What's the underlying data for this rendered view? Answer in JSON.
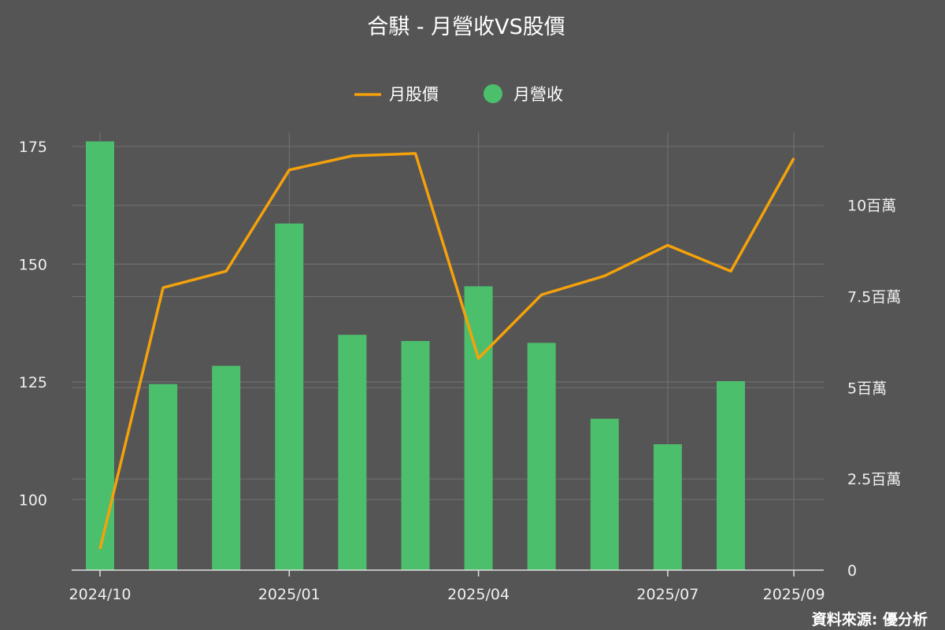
{
  "chart_data": {
    "type": "bar",
    "title": "合騏 - 月營收VS股價",
    "x": [
      "2024/10",
      "2024/11",
      "2024/12",
      "2025/01",
      "2025/02",
      "2025/03",
      "2025/04",
      "2025/05",
      "2025/06",
      "2025/07",
      "2025/08",
      "2025/09"
    ],
    "x_tick_labels": [
      "2024/10",
      "2025/01",
      "2025/04",
      "2025/07",
      "2025/09"
    ],
    "series": [
      {
        "name": "月營收",
        "type": "bar",
        "axis": "right",
        "color": "#4cbf6c",
        "values": [
          11.75,
          5.1,
          5.6,
          9.5,
          6.45,
          6.28,
          7.78,
          6.23,
          4.15,
          3.45,
          5.18,
          null
        ]
      },
      {
        "name": "月股價",
        "type": "line",
        "axis": "left",
        "color": "#f5a20a",
        "values": [
          89.5,
          145,
          148.5,
          170,
          173,
          173.5,
          130,
          143.5,
          147.5,
          154,
          148.5,
          172.5
        ]
      }
    ],
    "y_left": {
      "ticks": [
        100,
        125,
        150,
        175
      ],
      "labels": [
        "100",
        "125",
        "150",
        "175"
      ],
      "range": [
        85,
        178
      ]
    },
    "y_right": {
      "ticks": [
        0,
        2.5,
        5,
        7.5,
        10
      ],
      "labels": [
        "0",
        "2.5百萬",
        "5百萬",
        "7.5百萬",
        "10百萬"
      ],
      "range": [
        0,
        12
      ]
    },
    "grid": true,
    "legend_position": "top-center",
    "source": "資料來源: 優分析"
  }
}
